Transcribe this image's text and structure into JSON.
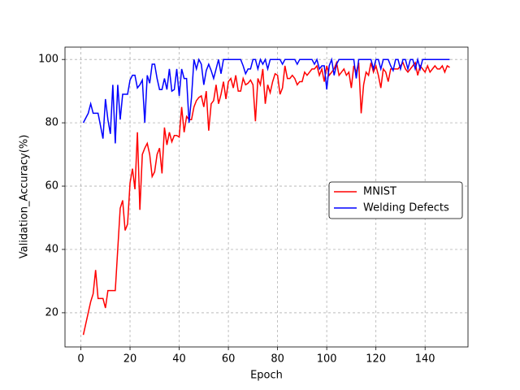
{
  "chart_data": {
    "type": "line",
    "xlabel": "Epoch",
    "ylabel": "Validation_Accuracy(%)",
    "x": [
      1,
      2,
      3,
      4,
      5,
      6,
      7,
      8,
      9,
      10,
      11,
      12,
      13,
      14,
      15,
      16,
      17,
      18,
      19,
      20,
      21,
      22,
      23,
      24,
      25,
      26,
      27,
      28,
      29,
      30,
      31,
      32,
      33,
      34,
      35,
      36,
      37,
      38,
      39,
      40,
      41,
      42,
      43,
      44,
      45,
      46,
      47,
      48,
      49,
      50,
      51,
      52,
      53,
      54,
      55,
      56,
      57,
      58,
      59,
      60,
      61,
      62,
      63,
      64,
      65,
      66,
      67,
      68,
      69,
      70,
      71,
      72,
      73,
      74,
      75,
      76,
      77,
      78,
      79,
      80,
      81,
      82,
      83,
      84,
      85,
      86,
      87,
      88,
      89,
      90,
      91,
      92,
      93,
      94,
      95,
      96,
      97,
      98,
      99,
      100,
      101,
      102,
      103,
      104,
      105,
      106,
      107,
      108,
      109,
      110,
      111,
      112,
      113,
      114,
      115,
      116,
      117,
      118,
      119,
      120,
      121,
      122,
      123,
      124,
      125,
      126,
      127,
      128,
      129,
      130,
      131,
      132,
      133,
      134,
      135,
      136,
      137,
      138,
      139,
      140,
      141,
      142,
      143,
      144,
      145,
      146,
      147,
      148,
      149,
      150
    ],
    "series": [
      {
        "name": "MNIST",
        "color": "#ff0000",
        "values": [
          13,
          16.5,
          20,
          23.5,
          26,
          33.5,
          24.5,
          24.5,
          24.5,
          21.5,
          27,
          27,
          27,
          27,
          40,
          53,
          55.5,
          46,
          48,
          61,
          65.5,
          59,
          77,
          52.5,
          70,
          72,
          73.5,
          70,
          63,
          64.5,
          70,
          72,
          64,
          78.5,
          73,
          77,
          74,
          76,
          76,
          75.5,
          85,
          77,
          82,
          81,
          81,
          85,
          87,
          88,
          88.5,
          85,
          90,
          77.5,
          86,
          87,
          92,
          86,
          89,
          93,
          87.5,
          93,
          94,
          91,
          95,
          90,
          90,
          94,
          92,
          92.5,
          93.5,
          92,
          80.5,
          94,
          92,
          97,
          86,
          92,
          89.5,
          93,
          95.5,
          95,
          89,
          91,
          98,
          94,
          94,
          95,
          94,
          92,
          93,
          93,
          96,
          95,
          96,
          97,
          97,
          98,
          95,
          97,
          93,
          98,
          95,
          96,
          97,
          99,
          95,
          96,
          97,
          95,
          96,
          91,
          98,
          96,
          99,
          83,
          92,
          96,
          95,
          99,
          96,
          98,
          95,
          91,
          97,
          96,
          93,
          97,
          97,
          97,
          97,
          98,
          99,
          97,
          96,
          97,
          98,
          99,
          95,
          98,
          97,
          96,
          98,
          96,
          97,
          98,
          97,
          97,
          98,
          96,
          98,
          97.5
        ]
      },
      {
        "name": "Welding Defects",
        "color": "#0000ff",
        "values": [
          80,
          81.5,
          83,
          86,
          83,
          83,
          83,
          79,
          75,
          87.5,
          81,
          76.5,
          92,
          73.5,
          92,
          81,
          89,
          89,
          89,
          93.5,
          95,
          95,
          91,
          92,
          93.5,
          80,
          95,
          92.5,
          98.5,
          98.5,
          94,
          90.5,
          90.5,
          94,
          90.5,
          97,
          90,
          90.5,
          97,
          88.5,
          97,
          94,
          94,
          80,
          88,
          100,
          97,
          100,
          98.5,
          92,
          96.5,
          98.5,
          96.5,
          94,
          97,
          100,
          95.5,
          100,
          100,
          100,
          100,
          100,
          100,
          100,
          100,
          98,
          95.5,
          97,
          97,
          100,
          100,
          97,
          100,
          98.5,
          100,
          97,
          100,
          100,
          100,
          100,
          100,
          98.5,
          100,
          100,
          100,
          100,
          100,
          98.5,
          100,
          100,
          100,
          100,
          100,
          100,
          98.5,
          100,
          97,
          98,
          98,
          90.5,
          98,
          100,
          95,
          98.5,
          100,
          100,
          100,
          100,
          100,
          100,
          100,
          94,
          100,
          100,
          100,
          100,
          100,
          100,
          97,
          100,
          100,
          97,
          100,
          100,
          100,
          98,
          96.5,
          100,
          100,
          97,
          100,
          100,
          97,
          100,
          100,
          97,
          100,
          97,
          100,
          100,
          100,
          100,
          100,
          100,
          100,
          100,
          100,
          100,
          100,
          100
        ]
      }
    ],
    "xlim": [
      -6.45,
      157.45
    ],
    "ylim": [
      9.2,
      103.9
    ],
    "xticks": [
      0,
      20,
      40,
      60,
      80,
      100,
      120,
      140
    ],
    "yticks": [
      20,
      40,
      60,
      80,
      100
    ],
    "grid": true,
    "legend": "center right"
  }
}
